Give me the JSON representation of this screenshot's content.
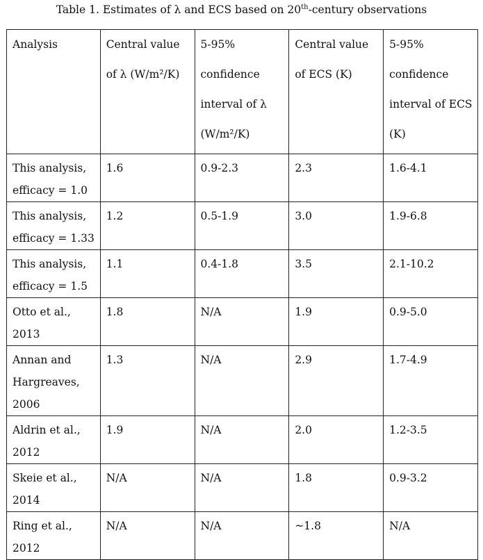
{
  "caption": {
    "prefix": "Table 1.  Estimates of λ and ECS based on 20",
    "sup": "th",
    "suffix": "-century observations"
  },
  "headers": [
    "Analysis",
    "Central value of λ (W/m²/K)",
    "5-95% confidence interval of λ (W/m²/K)",
    "Central value of ECS (K)",
    "5-95% confidence interval of ECS (K)"
  ],
  "rows": [
    [
      "This analysis, efficacy = 1.0",
      "1.6",
      "0.9-2.3",
      "2.3",
      "1.6-4.1"
    ],
    [
      "This analysis, efficacy = 1.33",
      "1.2",
      "0.5-1.9",
      "3.0",
      "1.9-6.8"
    ],
    [
      "This analysis, efficacy = 1.5",
      "1.1",
      "0.4-1.8",
      "3.5",
      "2.1-10.2"
    ],
    [
      "Otto et al., 2013",
      "1.8",
      "N/A",
      "1.9",
      "0.9-5.0"
    ],
    [
      "Annan and Hargreaves, 2006",
      "1.3",
      "N/A",
      "2.9",
      "1.7-4.9"
    ],
    [
      "Aldrin et al., 2012",
      "1.9",
      "N/A",
      "2.0",
      "1.2-3.5"
    ],
    [
      "Skeie et al., 2014",
      "N/A",
      "N/A",
      "1.8",
      "0.9-3.2"
    ],
    [
      "Ring et al., 2012",
      "N/A",
      "N/A",
      "~1.8",
      "N/A"
    ]
  ]
}
